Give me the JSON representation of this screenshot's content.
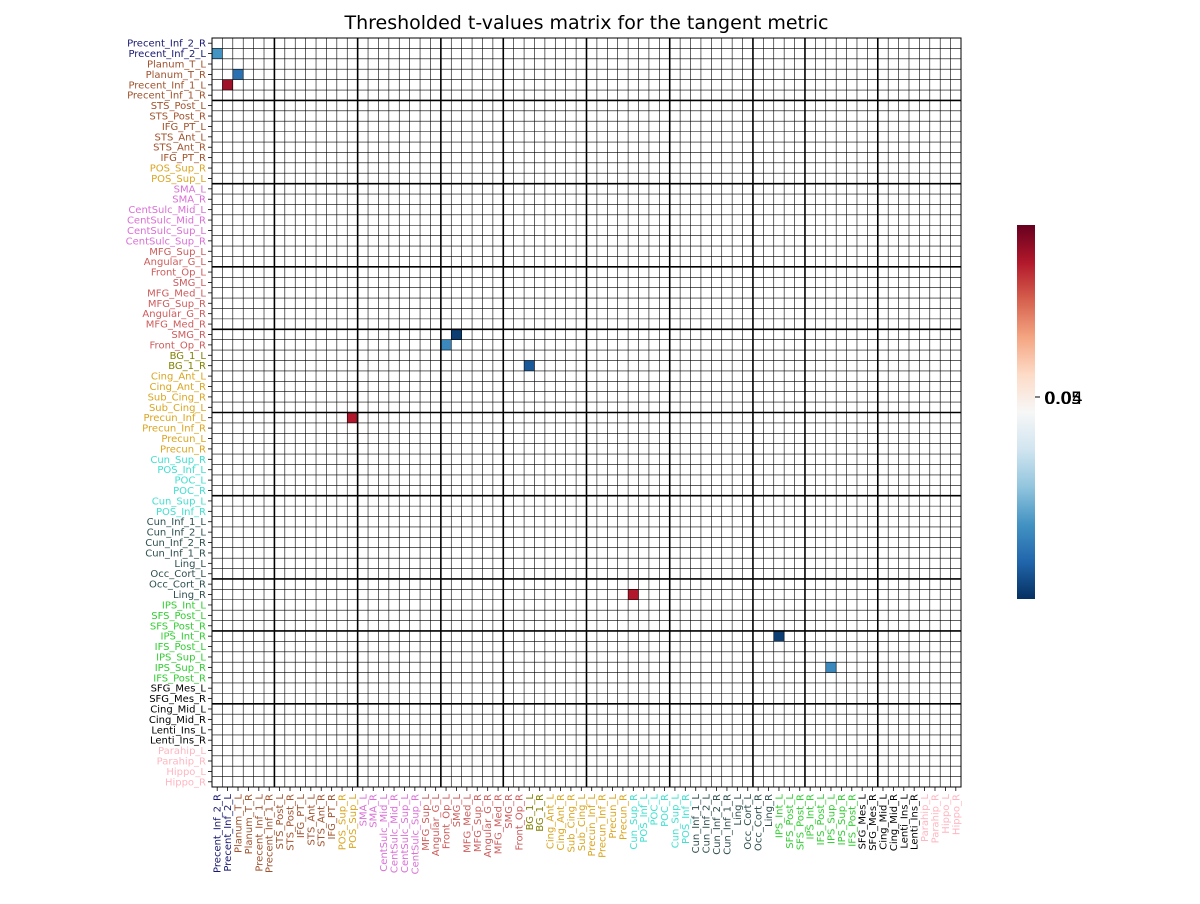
{
  "chart_data": {
    "type": "heatmap",
    "title": "Thresholded t-values matrix for the tangent metric",
    "labels": [
      "Precent_Inf_2_R",
      "Precent_Inf_2_L",
      "Planum_T_L",
      "Planum_T_R",
      "Precent_Inf_1_L",
      "Precent_Inf_1_R",
      "STS_Post_L",
      "STS_Post_R",
      "IFG_PT_L",
      "STS_Ant_L",
      "STS_Ant_R",
      "IFG_PT_R",
      "POS_Sup_R",
      "POS_Sup_L",
      "SMA_L",
      "SMA_R",
      "CentSulc_Mid_L",
      "CentSulc_Mid_R",
      "CentSulc_Sup_L",
      "CentSulc_Sup_R",
      "MFG_Sup_L",
      "Angular_G_L",
      "Front_Op_L",
      "SMG_L",
      "MFG_Med_L",
      "MFG_Sup_R",
      "Angular_G_R",
      "MFG_Med_R",
      "SMG_R",
      "Front_Op_R",
      "BG_1_L",
      "BG_1_R",
      "Cing_Ant_L",
      "Cing_Ant_R",
      "Sub_Cing_R",
      "Sub_Cing_L",
      "Precun_Inf_L",
      "Precun_Inf_R",
      "Precun_L",
      "Precun_R",
      "Cun_Sup_R",
      "POS_Inf_L",
      "POC_L",
      "POC_R",
      "Cun_Sup_L",
      "POS_Inf_R",
      "Cun_Inf_1_L",
      "Cun_Inf_2_L",
      "Cun_Inf_2_R",
      "Cun_Inf_1_R",
      "Ling_L",
      "Occ_Cort_L",
      "Occ_Cort_R",
      "Ling_R",
      "IPS_Int_L",
      "SFS_Post_L",
      "SFS_Post_R",
      "IPS_Int_R",
      "IFS_Post_L",
      "IPS_Sup_L",
      "IPS_Sup_R",
      "IFS_Post_R",
      "SFG_Mes_L",
      "SFG_Mes_R",
      "Cing_Mid_L",
      "Cing_Mid_R",
      "Lenti_Ins_L",
      "Lenti_Ins_R",
      "Parahip_L",
      "Parahip_R",
      "Hippo_L",
      "Hippo_R"
    ],
    "label_colors": [
      "#191970",
      "#191970",
      "#a0522d",
      "#a0522d",
      "#a0522d",
      "#a0522d",
      "#a0522d",
      "#a0522d",
      "#a0522d",
      "#a0522d",
      "#a0522d",
      "#a0522d",
      "#daa520",
      "#daa520",
      "#da70d6",
      "#da70d6",
      "#da70d6",
      "#da70d6",
      "#da70d6",
      "#da70d6",
      "#cd5c5c",
      "#cd5c5c",
      "#cd5c5c",
      "#cd5c5c",
      "#cd5c5c",
      "#cd5c5c",
      "#cd5c5c",
      "#cd5c5c",
      "#cd5c5c",
      "#cd5c5c",
      "#808000",
      "#808000",
      "#daa520",
      "#daa520",
      "#daa520",
      "#daa520",
      "#daa520",
      "#daa520",
      "#daa520",
      "#daa520",
      "#40e0d0",
      "#40e0d0",
      "#40e0d0",
      "#40e0d0",
      "#40e0d0",
      "#40e0d0",
      "#2f4f4f",
      "#2f4f4f",
      "#2f4f4f",
      "#2f4f4f",
      "#2f4f4f",
      "#2f4f4f",
      "#2f4f4f",
      "#2f4f4f",
      "#32cd32",
      "#32cd32",
      "#32cd32",
      "#32cd32",
      "#32cd32",
      "#32cd32",
      "#32cd32",
      "#32cd32",
      "#000000",
      "#000000",
      "#000000",
      "#000000",
      "#000000",
      "#000000",
      "#ffb6c1",
      "#ffb6c1",
      "#ffb6c1",
      "#ffb6c1"
    ],
    "group_boundaries": [
      6,
      14,
      22,
      28,
      36,
      44,
      52,
      57,
      64
    ],
    "nonzero_cells": [
      {
        "row": "Precent_Inf_2_L",
        "col": "Precent_Inf_2_R",
        "level": -0.6
      },
      {
        "row": "Planum_T_R",
        "col": "Planum_T_L",
        "level": -0.75
      },
      {
        "row": "Precent_Inf_1_L",
        "col": "Precent_Inf_2_L",
        "level": 0.85
      },
      {
        "row": "SMG_R",
        "col": "SMG_L",
        "level": -0.95
      },
      {
        "row": "Front_Op_R",
        "col": "Front_Op_L",
        "level": -0.65
      },
      {
        "row": "BG_1_R",
        "col": "BG_1_L",
        "level": -0.85
      },
      {
        "row": "Precun_Inf_L",
        "col": "POS_Sup_L",
        "level": 0.8
      },
      {
        "row": "Ling_R",
        "col": "Cun_Sup_R",
        "level": 0.8
      },
      {
        "row": "IPS_Int_R",
        "col": "IPS_Int_L",
        "level": -0.95
      },
      {
        "row": "IPS_Sup_R",
        "col": "IPS_Sup_L",
        "level": -0.65
      }
    ],
    "colormap": "RdBu_r",
    "colorbar_ticks": [
      "0.05",
      "0.04",
      "0.05"
    ]
  }
}
